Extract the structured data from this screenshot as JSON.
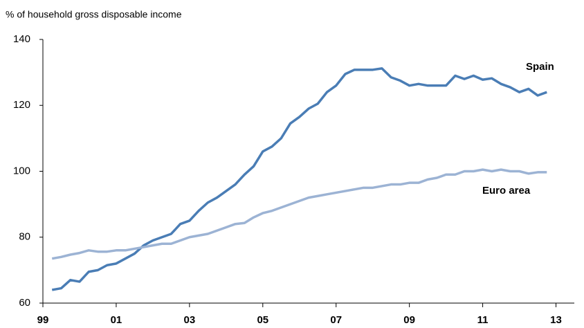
{
  "chart_data": {
    "type": "line",
    "y_label": "% of household gross disposable income",
    "x": [
      1999.25,
      1999.5,
      1999.75,
      2000,
      2000.25,
      2000.5,
      2000.75,
      2001,
      2001.25,
      2001.5,
      2001.75,
      2002,
      2002.25,
      2002.5,
      2002.75,
      2003,
      2003.25,
      2003.5,
      2003.75,
      2004,
      2004.25,
      2004.5,
      2004.75,
      2005,
      2005.25,
      2005.5,
      2005.75,
      2006,
      2006.25,
      2006.5,
      2006.75,
      2007,
      2007.25,
      2007.5,
      2007.75,
      2008,
      2008.25,
      2008.5,
      2008.75,
      2009,
      2009.25,
      2009.5,
      2009.75,
      2010,
      2010.25,
      2010.5,
      2010.75,
      2011,
      2011.25,
      2011.5,
      2011.75,
      2012,
      2012.25,
      2012.5,
      2012.75
    ],
    "series": [
      {
        "name": "Spain",
        "color": "#4a7db5",
        "values": [
          64,
          64.5,
          67,
          66.5,
          69.5,
          70,
          71.5,
          72,
          73.5,
          75,
          77.5,
          79,
          80,
          81,
          84,
          85,
          88,
          90.5,
          92,
          94,
          96,
          99,
          101.5,
          106,
          107.5,
          110,
          114.5,
          116.5,
          119,
          120.5,
          124,
          126,
          129.5,
          130.8,
          130.8,
          130.8,
          131.2,
          128.5,
          127.5,
          126,
          126.5,
          126,
          126,
          126,
          129,
          128,
          129,
          127.8,
          128.2,
          126.5,
          125.5,
          124,
          125,
          123,
          124
        ]
      },
      {
        "name": "Euro area",
        "color": "#9cb3d4",
        "values": [
          73.5,
          74,
          74.7,
          75.2,
          76,
          75.6,
          75.6,
          76,
          76,
          76.5,
          77,
          77.5,
          78,
          78,
          79,
          80,
          80.5,
          81,
          82,
          83,
          84,
          84.3,
          86,
          87.3,
          88,
          89,
          90,
          91,
          92,
          92.5,
          93,
          93.5,
          94,
          94.5,
          95,
          95,
          95.5,
          96,
          96,
          96.5,
          96.5,
          97.5,
          98,
          99,
          99,
          100,
          100,
          100.5,
          100,
          100.5,
          100,
          100,
          99.3,
          99.7,
          99.7
        ]
      }
    ],
    "xlim": [
      1999,
      2013.5
    ],
    "xticks": [
      {
        "value": 1999,
        "label": "99"
      },
      {
        "value": 2001,
        "label": "01"
      },
      {
        "value": 2003,
        "label": "03"
      },
      {
        "value": 2005,
        "label": "05"
      },
      {
        "value": 2007,
        "label": "07"
      },
      {
        "value": 2009,
        "label": "09"
      },
      {
        "value": 2011,
        "label": "11"
      },
      {
        "value": 2013,
        "label": "13"
      }
    ],
    "ylim": [
      60,
      140
    ],
    "yticks": [
      60,
      80,
      100,
      120,
      140
    ]
  }
}
